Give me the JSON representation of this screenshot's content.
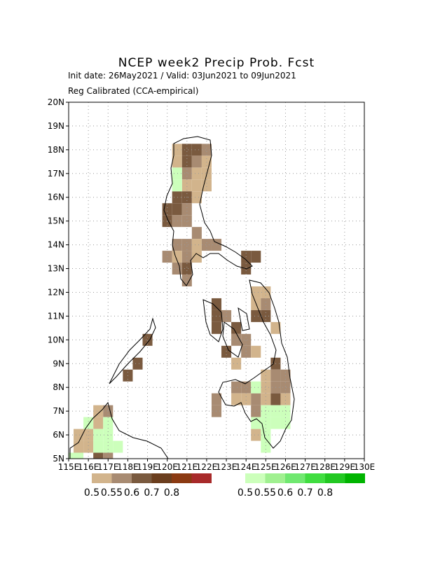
{
  "chart_data": {
    "type": "map",
    "title": "NCEP week2 Precip Prob. Fcst",
    "subtitle": "Init date: 26May2021 / Valid: 03Jun2021 to 09Jun2021",
    "note": "Reg Calibrated (CCA-empirical)",
    "xlim": [
      115,
      130
    ],
    "ylim": [
      5,
      20
    ],
    "grid": true,
    "xticks": [
      {
        "value": 115,
        "label": "115E"
      },
      {
        "value": 116,
        "label": "116E"
      },
      {
        "value": 117,
        "label": "117E"
      },
      {
        "value": 118,
        "label": "118E"
      },
      {
        "value": 119,
        "label": "119E"
      },
      {
        "value": 120,
        "label": "120E"
      },
      {
        "value": 121,
        "label": "121E"
      },
      {
        "value": 122,
        "label": "122E"
      },
      {
        "value": 123,
        "label": "123E"
      },
      {
        "value": 124,
        "label": "124E"
      },
      {
        "value": 125,
        "label": "125E"
      },
      {
        "value": 126,
        "label": "126E"
      },
      {
        "value": 127,
        "label": "127E"
      },
      {
        "value": 128,
        "label": "128E"
      },
      {
        "value": 129,
        "label": "129E"
      },
      {
        "value": 130,
        "label": "130E"
      }
    ],
    "yticks": [
      {
        "value": 5,
        "label": "5N"
      },
      {
        "value": 6,
        "label": "6N"
      },
      {
        "value": 7,
        "label": "7N"
      },
      {
        "value": 8,
        "label": "8N"
      },
      {
        "value": 9,
        "label": "9N"
      },
      {
        "value": 10,
        "label": "10N"
      },
      {
        "value": 11,
        "label": "11N"
      },
      {
        "value": 12,
        "label": "12N"
      },
      {
        "value": 13,
        "label": "13N"
      },
      {
        "value": 14,
        "label": "14N"
      },
      {
        "value": 15,
        "label": "15N"
      },
      {
        "value": 16,
        "label": "16N"
      },
      {
        "value": 17,
        "label": "17N"
      },
      {
        "value": 18,
        "label": "18N"
      },
      {
        "value": 19,
        "label": "19N"
      },
      {
        "value": 20,
        "label": "20N"
      }
    ],
    "levels": [
      0.5,
      0.55,
      0.6,
      0.7,
      0.8
    ],
    "below_colors": [
      "#d2b48c",
      "#a88b72",
      "#7a5a3f",
      "#6b3e1e",
      "#8b3a12",
      "#a82a2a"
    ],
    "above_colors": [
      "#ccffbb",
      "#a0f090",
      "#70e870",
      "#40dd40",
      "#22c822",
      "#00b400"
    ],
    "below": [
      [
        120.5,
        18,
        0.52
      ],
      [
        121,
        18,
        0.65
      ],
      [
        121.5,
        18,
        0.65
      ],
      [
        122,
        18,
        0.57
      ],
      [
        120.5,
        17.5,
        0.52
      ],
      [
        121,
        17.5,
        0.65
      ],
      [
        121.5,
        17.5,
        0.57
      ],
      [
        122,
        17.5,
        0.52
      ],
      [
        121,
        17,
        0.57
      ],
      [
        121.5,
        17,
        0.52
      ],
      [
        122,
        17,
        0.52
      ],
      [
        121,
        16.5,
        0.52
      ],
      [
        121.5,
        16.5,
        0.52
      ],
      [
        122,
        16.5,
        0.52
      ],
      [
        120.5,
        16,
        0.65
      ],
      [
        121,
        16,
        0.65
      ],
      [
        121.5,
        16,
        0.52
      ],
      [
        120,
        15.5,
        0.65
      ],
      [
        120.5,
        15.5,
        0.65
      ],
      [
        121,
        15.5,
        0.57
      ],
      [
        120,
        15,
        0.65
      ],
      [
        120.5,
        15,
        0.57
      ],
      [
        121,
        15,
        0.57
      ],
      [
        121.5,
        14.5,
        0.57
      ],
      [
        120.5,
        14,
        0.57
      ],
      [
        121,
        14,
        0.57
      ],
      [
        121.5,
        14,
        0.52
      ],
      [
        122,
        14,
        0.57
      ],
      [
        122.5,
        14,
        0.57
      ],
      [
        120,
        13.5,
        0.57
      ],
      [
        120.5,
        13.5,
        0.52
      ],
      [
        121,
        13.5,
        0.57
      ],
      [
        121.5,
        13.5,
        0.52
      ],
      [
        124,
        13.5,
        0.65
      ],
      [
        124.5,
        13.5,
        0.65
      ],
      [
        120.5,
        13,
        0.57
      ],
      [
        121,
        13,
        0.65
      ],
      [
        124,
        13,
        0.65
      ],
      [
        121,
        12.5,
        0.57
      ],
      [
        124.5,
        12,
        0.52
      ],
      [
        125,
        12,
        0.52
      ],
      [
        122.5,
        11.5,
        0.65
      ],
      [
        124.5,
        11.5,
        0.52
      ],
      [
        125,
        11.5,
        0.57
      ],
      [
        122.5,
        11,
        0.65
      ],
      [
        123,
        11,
        0.57
      ],
      [
        124.5,
        11,
        0.65
      ],
      [
        125,
        11,
        0.65
      ],
      [
        122.5,
        10.5,
        0.65
      ],
      [
        123.5,
        10.5,
        0.65
      ],
      [
        125.5,
        10.5,
        0.52
      ],
      [
        119,
        10,
        0.65
      ],
      [
        123.5,
        10,
        0.57
      ],
      [
        124,
        10,
        0.57
      ],
      [
        123,
        9.5,
        0.65
      ],
      [
        124,
        9.5,
        0.57
      ],
      [
        124.5,
        9.5,
        0.52
      ],
      [
        118.5,
        9,
        0.65
      ],
      [
        123.5,
        9,
        0.52
      ],
      [
        125.5,
        9,
        0.65
      ],
      [
        118,
        8.5,
        0.65
      ],
      [
        125,
        8.5,
        0.52
      ],
      [
        125.5,
        8.5,
        0.57
      ],
      [
        126,
        8.5,
        0.57
      ],
      [
        123.5,
        8,
        0.57
      ],
      [
        124,
        8,
        0.57
      ],
      [
        125,
        8,
        0.52
      ],
      [
        125.5,
        8,
        0.57
      ],
      [
        126,
        8,
        0.57
      ],
      [
        122.5,
        7.5,
        0.57
      ],
      [
        123.5,
        7.5,
        0.52
      ],
      [
        124,
        7.5,
        0.52
      ],
      [
        124.5,
        7.5,
        0.57
      ],
      [
        125,
        7.5,
        0.52
      ],
      [
        125.5,
        7.5,
        0.65
      ],
      [
        126,
        7.5,
        0.52
      ],
      [
        122.5,
        7,
        0.57
      ],
      [
        124.5,
        7,
        0.57
      ],
      [
        116.5,
        7,
        0.52
      ],
      [
        117,
        7,
        0.57
      ],
      [
        116.5,
        6.5,
        0.52
      ],
      [
        124.5,
        6,
        0.52
      ],
      [
        115.5,
        6,
        0.52
      ],
      [
        116,
        6,
        0.52
      ],
      [
        115.5,
        5.5,
        0.52
      ],
      [
        116,
        5.5,
        0.52
      ],
      [
        116.5,
        5,
        0.65
      ],
      [
        117,
        5,
        0.57
      ]
    ],
    "above": [
      [
        120.5,
        17,
        0.52
      ],
      [
        120.5,
        16.5,
        0.52
      ],
      [
        124.5,
        8,
        0.52
      ],
      [
        125,
        7,
        0.52
      ],
      [
        125.5,
        7,
        0.52
      ],
      [
        126,
        7,
        0.52
      ],
      [
        124.5,
        6.5,
        0.52
      ],
      [
        125,
        6.5,
        0.52
      ],
      [
        125.5,
        6.5,
        0.52
      ],
      [
        126,
        6.5,
        0.52
      ],
      [
        125,
        6,
        0.52
      ],
      [
        125,
        5.5,
        0.52
      ],
      [
        116,
        6.5,
        0.52
      ],
      [
        117,
        6.5,
        0.52
      ],
      [
        116.5,
        6,
        0.52
      ],
      [
        117,
        6,
        0.52
      ],
      [
        116.5,
        5.5,
        0.52
      ],
      [
        117,
        5.5,
        0.52
      ],
      [
        117.5,
        5.5,
        0.52
      ],
      [
        115,
        5,
        0.52
      ],
      [
        115.5,
        5,
        0.52
      ]
    ]
  }
}
